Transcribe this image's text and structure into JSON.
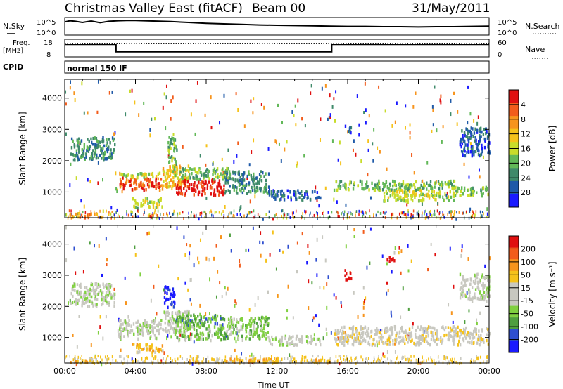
{
  "header": {
    "title": "Christmas Valley East (fitACF)",
    "beam": "Beam 00",
    "date": "31/May/2011"
  },
  "status_panel": {
    "nsky_label": "N.Sky",
    "nsearch_label": "N.Search",
    "count_ticks": [
      "10^5",
      "10^0"
    ],
    "freq_label": "Freq.",
    "freq_unit": "[MHz]",
    "freq_ticks": [
      "18",
      "8"
    ],
    "nave_label": "Nave",
    "nave_ticks": [
      "60",
      "0"
    ],
    "cpid_label": "CPID",
    "cpid_value": "normal 150 IF"
  },
  "chart_data": [
    {
      "type": "line",
      "name": "noise",
      "x_hours": [
        0,
        0.3,
        0.6,
        1,
        1.5,
        2,
        2.5,
        3,
        3.5,
        4,
        4.5,
        5,
        6,
        7,
        8,
        9,
        10,
        11,
        12,
        13,
        14,
        15,
        16,
        17,
        18,
        19,
        20,
        21,
        22,
        23,
        24
      ],
      "nsky": [
        4.2,
        4.6,
        4.4,
        4.0,
        4.5,
        3.9,
        4.4,
        4.6,
        4.7,
        4.7,
        4.6,
        4.5,
        4.3,
        4.0,
        3.7,
        3.5,
        3.3,
        3.1,
        3.0,
        2.9,
        2.8,
        2.7,
        2.6,
        2.6,
        2.5,
        2.5,
        2.4,
        2.5,
        2.5,
        2.6,
        2.7
      ],
      "count_range": [
        "10^0",
        "10^5"
      ]
    },
    {
      "type": "line",
      "name": "frequency",
      "segments": [
        {
          "start_hour": 0,
          "end_hour": 2.9,
          "freq_mhz": 15.5
        },
        {
          "start_hour": 2.9,
          "end_hour": 15.1,
          "freq_mhz": 10.5
        },
        {
          "start_hour": 15.1,
          "end_hour": 24,
          "freq_mhz": 15.5
        }
      ],
      "nave": 50,
      "ylim": [
        8,
        18
      ]
    },
    {
      "type": "heatmap",
      "title": "Power",
      "ylabel": "Slant Range [km]",
      "yticks": [
        1000,
        2000,
        3000,
        4000
      ],
      "ylim": [
        180,
        4600
      ],
      "xlim": [
        0,
        24
      ],
      "colorbar_label": "Power [dB]",
      "colorbar_ticks": [
        "4",
        "8",
        "12",
        "16",
        "20",
        "24",
        "28"
      ],
      "colors": [
        "#1a1aff",
        "#1f5aa8",
        "#3f8a6a",
        "#62b858",
        "#c8dc2a",
        "#f5c21a",
        "#f7941d",
        "#f25c1b",
        "#e01010"
      ],
      "regions": [
        {
          "t0": 0.3,
          "t1": 2.8,
          "r0": 2050,
          "r1": 2800,
          "level": 2
        },
        {
          "t0": 0.2,
          "t1": 2.0,
          "r0": 220,
          "r1": 360,
          "level": 6
        },
        {
          "t0": 3.0,
          "t1": 5.5,
          "r0": 1100,
          "r1": 1500,
          "level": 7
        },
        {
          "t0": 3.0,
          "t1": 5.5,
          "r0": 1500,
          "r1": 1650,
          "level": 4
        },
        {
          "t0": 3.8,
          "t1": 5.5,
          "r0": 550,
          "r1": 850,
          "level": 4
        },
        {
          "t0": 5.5,
          "t1": 7.0,
          "r0": 1200,
          "r1": 1900,
          "level": 5
        },
        {
          "t0": 6.2,
          "t1": 9.0,
          "r0": 950,
          "r1": 1450,
          "level": 8
        },
        {
          "t0": 6.0,
          "t1": 9.5,
          "r0": 1450,
          "r1": 1800,
          "level": 3
        },
        {
          "t0": 9.0,
          "t1": 11.5,
          "r0": 1000,
          "r1": 1700,
          "level": 2
        },
        {
          "t0": 11.5,
          "t1": 14.5,
          "r0": 800,
          "r1": 1100,
          "level": 1
        },
        {
          "t0": 15.2,
          "t1": 22.0,
          "r0": 1100,
          "r1": 1400,
          "level": 3
        },
        {
          "t0": 18.0,
          "t1": 22.0,
          "r0": 750,
          "r1": 1100,
          "level": 4
        },
        {
          "t0": 22.0,
          "t1": 24.0,
          "r0": 900,
          "r1": 1200,
          "level": 3
        },
        {
          "t0": 22.3,
          "t1": 24.0,
          "r0": 2200,
          "r1": 3100,
          "level": 1
        },
        {
          "t0": 15.8,
          "t1": 16.2,
          "r0": 2900,
          "r1": 3200,
          "level": 1
        },
        {
          "t0": 5.8,
          "t1": 6.3,
          "r0": 1800,
          "r1": 2800,
          "level": 3
        }
      ]
    },
    {
      "type": "heatmap",
      "title": "Velocity",
      "ylabel": "Slant Range [km]",
      "yticks": [
        1000,
        2000,
        3000,
        4000
      ],
      "ylim": [
        180,
        4600
      ],
      "xlim": [
        0,
        24
      ],
      "xlabel": "Time UT",
      "xticks": [
        "00:00",
        "04:00",
        "08:00",
        "12:00",
        "16:00",
        "20:00",
        "00:00"
      ],
      "colorbar_label": "Velocity [m s⁻¹]",
      "colorbar_ticks": [
        "200",
        "100",
        "50",
        "15",
        "-15",
        "-50",
        "-100",
        "-200"
      ],
      "colors": [
        "#1a1aff",
        "#2f4fd0",
        "#4f9f3f",
        "#80d040",
        "#c8c8c0",
        "#c8c8c0",
        "#f5c21a",
        "#f7941d",
        "#f25c1b",
        "#e01010"
      ],
      "regions": [
        {
          "t0": 0.3,
          "t1": 2.8,
          "r0": 2050,
          "r1": 2800,
          "level": 4
        },
        {
          "t0": 0.2,
          "t1": 2.0,
          "r0": 220,
          "r1": 360,
          "level": 6
        },
        {
          "t0": 3.0,
          "t1": 5.5,
          "r0": 1000,
          "r1": 1600,
          "level": 4
        },
        {
          "t0": 3.8,
          "t1": 5.5,
          "r0": 550,
          "r1": 850,
          "level": 6
        },
        {
          "t0": 5.6,
          "t1": 6.2,
          "r0": 2000,
          "r1": 2700,
          "level": 0
        },
        {
          "t0": 5.5,
          "t1": 7.0,
          "r0": 1200,
          "r1": 1900,
          "level": 4
        },
        {
          "t0": 6.2,
          "t1": 9.0,
          "r0": 950,
          "r1": 1450,
          "level": 3
        },
        {
          "t0": 6.2,
          "t1": 9.0,
          "r0": 1450,
          "r1": 1800,
          "level": 2
        },
        {
          "t0": 9.0,
          "t1": 11.5,
          "r0": 1000,
          "r1": 1700,
          "level": 3
        },
        {
          "t0": 11.5,
          "t1": 14.5,
          "r0": 800,
          "r1": 1100,
          "level": 4
        },
        {
          "t0": 15.2,
          "t1": 24.0,
          "r0": 800,
          "r1": 1400,
          "level": 5
        },
        {
          "t0": 15.8,
          "t1": 16.2,
          "r0": 2900,
          "r1": 3200,
          "level": 9
        },
        {
          "t0": 18.2,
          "t1": 18.6,
          "r0": 3500,
          "r1": 3700,
          "level": 9
        },
        {
          "t0": 22.3,
          "t1": 24.0,
          "r0": 2200,
          "r1": 3100,
          "level": 4
        },
        {
          "t0": 7.0,
          "t1": 15.0,
          "r0": 220,
          "r1": 360,
          "level": 6
        }
      ]
    }
  ]
}
